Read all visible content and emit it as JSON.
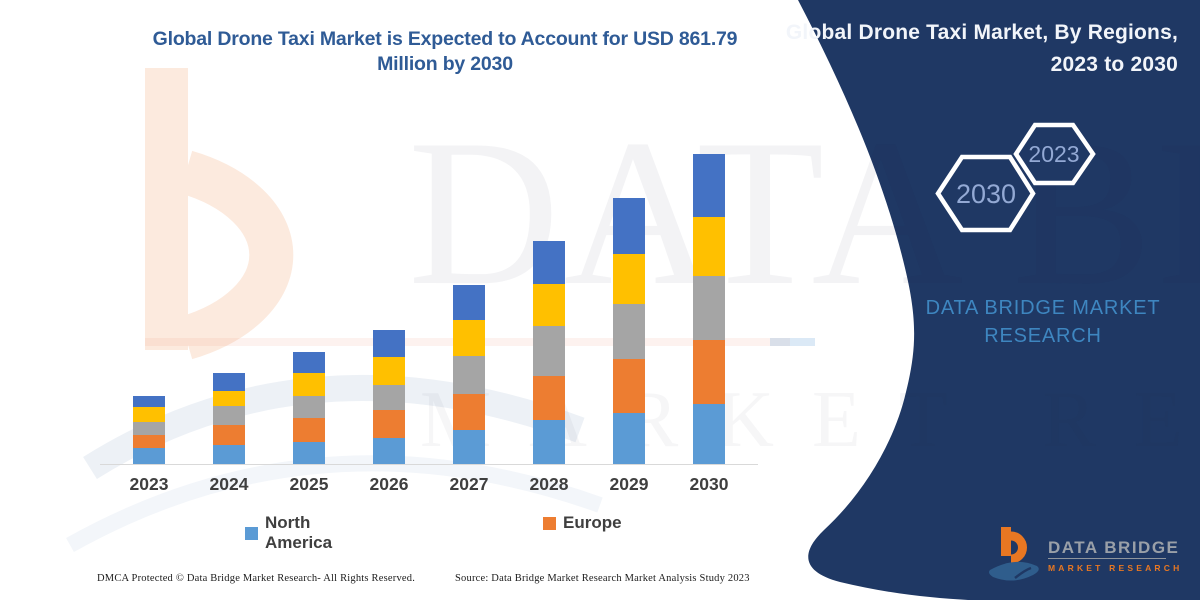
{
  "header": {
    "title_line1": "Global Drone Taxi Market is Expected to Account for USD 861.79",
    "title_line2": "Million by 2030"
  },
  "side_panel": {
    "title_line1": "Global Drone Taxi Market, By Regions,",
    "title_line2": "2023 to 2030",
    "hex_back_label": "2030",
    "hex_front_label": "2023",
    "brand_line1": "DATA BRIDGE MARKET",
    "brand_line2": "RESEARCH",
    "panel_color": "#1F3864",
    "brand_text_color": "#3E86C0",
    "hex_label_color": "#93A9D4"
  },
  "watermark": {
    "line1": "DATA BRIDGE",
    "line2": "MARKET RESEARCH"
  },
  "logo": {
    "title": "DATA BRIDGE",
    "subtitle": "MARKET RESEARCH",
    "orange": "#E87722",
    "swoosh_blue": "#2F5D8C"
  },
  "footer": {
    "left": "DMCA Protected © Data Bridge Market Research-  All Rights Reserved.",
    "right": "Source: Data Bridge Market Research  Market Analysis Study 2023"
  },
  "chart_data": {
    "type": "bar",
    "stacked": true,
    "title": "Global Drone Taxi Market is Expected to Account for USD 861.79 Million by 2030",
    "unit": "USD Million",
    "categories": [
      "2023",
      "2024",
      "2025",
      "2026",
      "2027",
      "2028",
      "2029",
      "2030"
    ],
    "series": [
      {
        "name": "North America",
        "color": "#5B9BD5",
        "values": [
          43.5,
          52.9,
          61.3,
          71.6,
          95.6,
          122.6,
          141.3,
          167.2
        ]
      },
      {
        "name": "Europe",
        "color": "#ED7D31",
        "values": [
          37.3,
          55.7,
          66.9,
          77.2,
          99.5,
          123.4,
          151.3,
          176.4
        ]
      },
      {
        "name": "Unlabeled (gray)",
        "color": "#A5A5A5",
        "values": [
          37.1,
          52.9,
          59.9,
          69.7,
          105.0,
          136.5,
          153.2,
          178.3
        ]
      },
      {
        "name": "Unlabeled (yellow)",
        "color": "#FFC000",
        "values": [
          39.8,
          42.6,
          64.1,
          78.8,
          101.1,
          117.0,
          139.3,
          165.2
        ]
      },
      {
        "name": "Unlabeled (dark blue)",
        "color": "#4472C4",
        "values": [
          31.8,
          48.2,
          58.5,
          74.4,
          95.6,
          119.8,
          153.2,
          174.69
        ]
      }
    ],
    "totals": [
      189.5,
      252.3,
      310.7,
      371.7,
      496.8,
      619.3,
      738.3,
      861.79
    ],
    "legend": [
      "North America",
      "Europe"
    ],
    "legend_position": "bottom",
    "gridlines": false,
    "y_axis_visible": false,
    "x_axis_label_color": "#3F3F3F"
  }
}
